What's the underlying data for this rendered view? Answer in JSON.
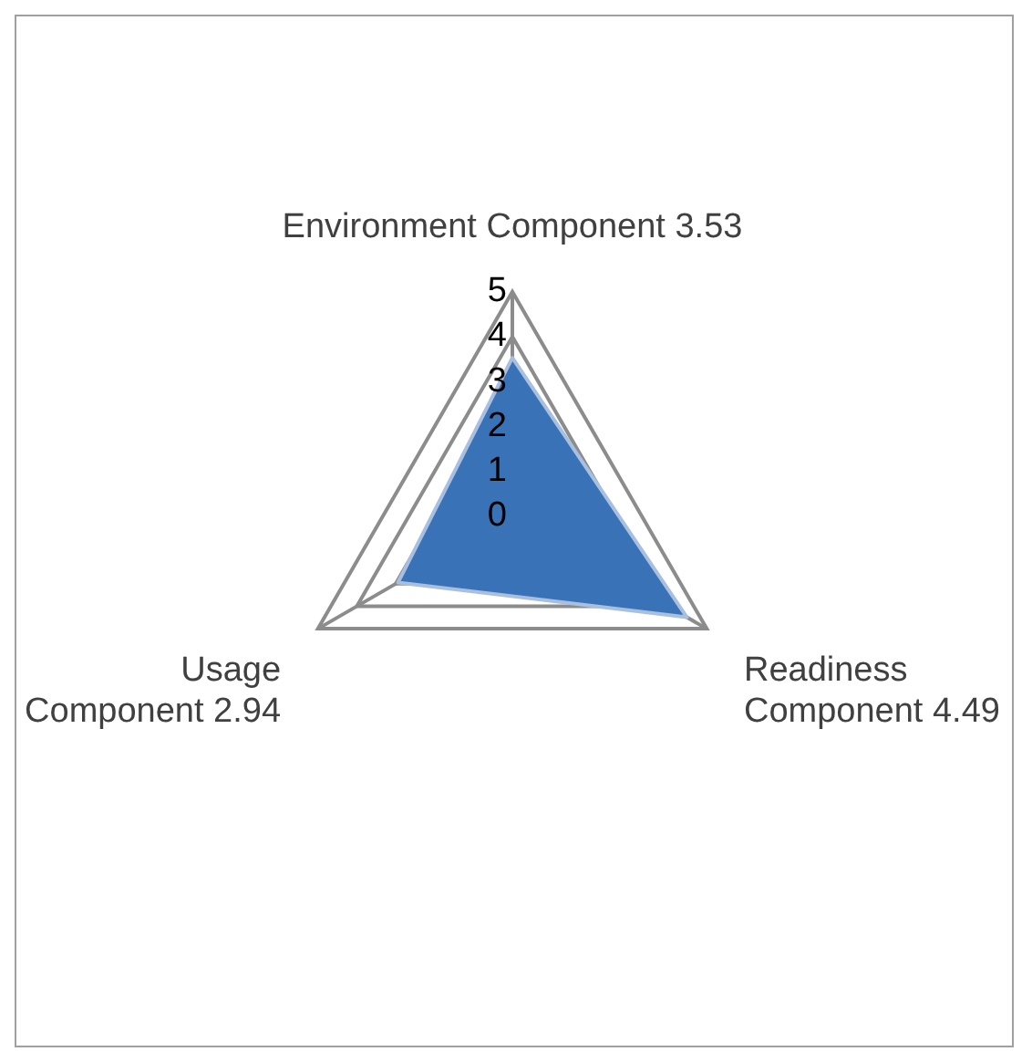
{
  "chart_data": {
    "type": "radar",
    "categories": [
      "Environment Component 3.53",
      "Readiness Component 4.49",
      "Usage Component 2.94"
    ],
    "series": [
      {
        "color": "#3a72b8",
        "values": [
          3.53,
          4.49,
          2.94
        ]
      }
    ],
    "ylim": [
      0,
      5
    ],
    "yticks": [
      0,
      1,
      2,
      3,
      4,
      5
    ],
    "grid": true,
    "legend": false
  }
}
